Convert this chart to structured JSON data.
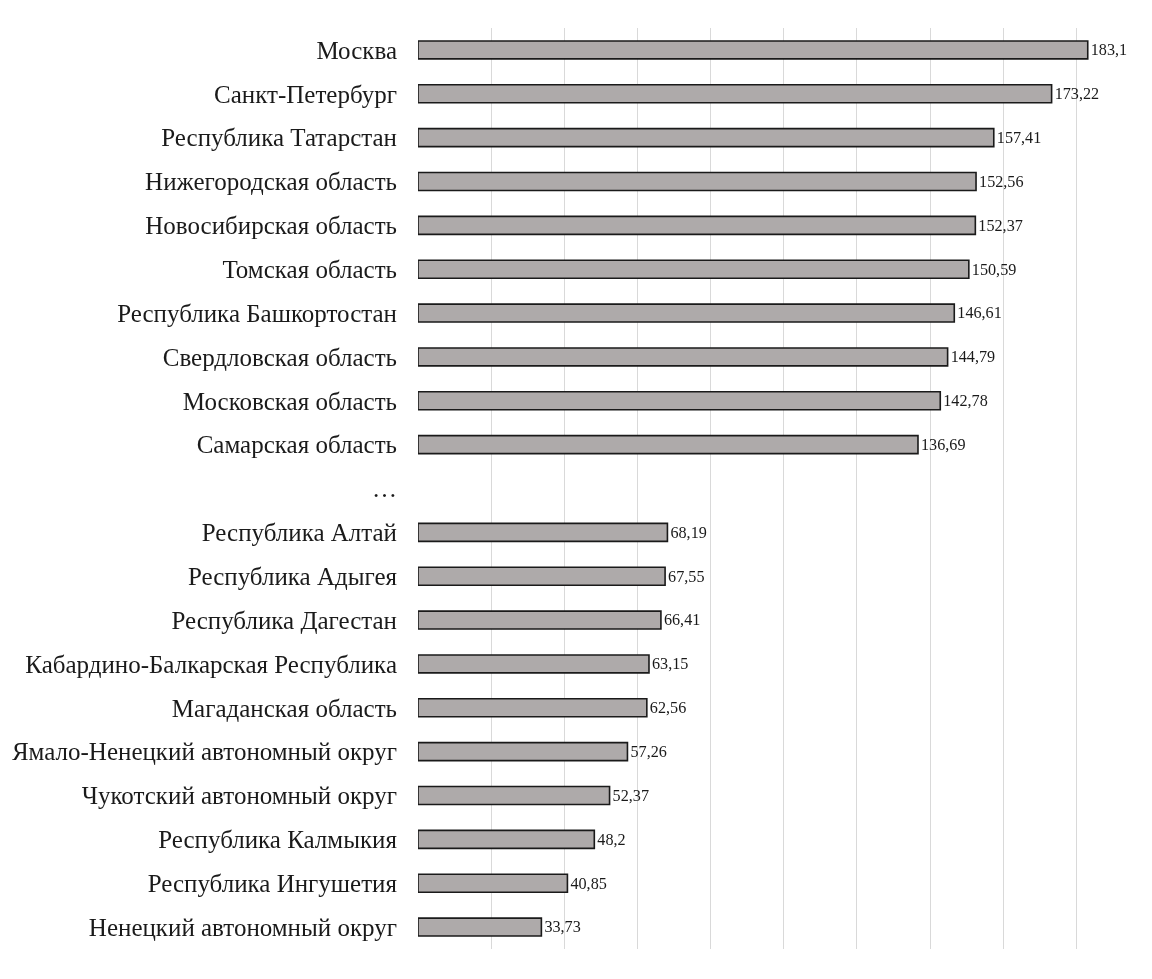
{
  "chart_data": {
    "type": "bar",
    "orientation": "horizontal",
    "categories": [
      "Москва",
      "Санкт-Петербург",
      "Республика Татарстан",
      "Нижегородская область",
      "Новосибирская область",
      "Томская область",
      "Республика Башкортостан",
      "Свердловская область",
      "Московская область",
      "Самарская область",
      "…",
      "Республика Алтай",
      "Республика Адыгея",
      "Республика Дагестан",
      "Кабардино-Балкарская Республика",
      "Магаданская область",
      "Ямало-Ненецкий автономный округ",
      "Чукотский автономный округ",
      "Республика Калмыкия",
      "Республика Ингушетия",
      "Ненецкий автономный округ"
    ],
    "values": [
      183.1,
      173.22,
      157.41,
      152.56,
      152.37,
      150.59,
      146.61,
      144.79,
      142.78,
      136.69,
      null,
      68.19,
      67.55,
      66.41,
      63.15,
      62.56,
      57.26,
      52.37,
      48.2,
      40.85,
      33.73
    ],
    "value_labels": [
      "183,1",
      "173,22",
      "157,41",
      "152,56",
      "152,37",
      "150,59",
      "146,61",
      "144,79",
      "142,78",
      "136,69",
      null,
      "68,19",
      "67,55",
      "66,41",
      "63,15",
      "62,56",
      "57,26",
      "52,37",
      "48,2",
      "40,85",
      "33,73"
    ],
    "color": "#aeaaaa",
    "grid": "x",
    "tick_labels": "y"
  }
}
